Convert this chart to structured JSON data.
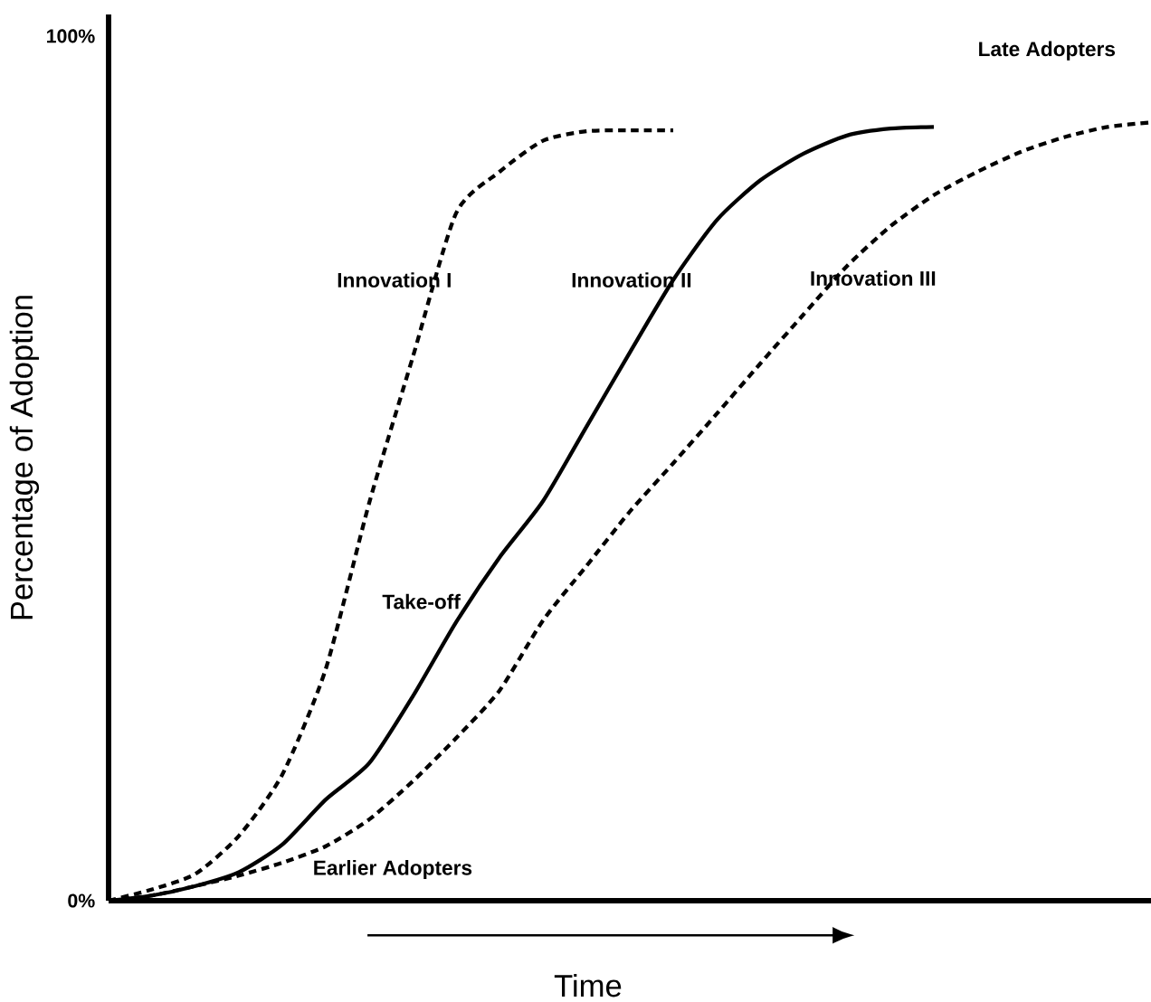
{
  "chart_data": {
    "type": "line",
    "xlabel": "Time",
    "ylabel": "Percentage of Adoption",
    "categories": [
      null,
      null,
      null,
      null,
      null,
      null,
      null,
      null,
      null,
      null,
      null,
      null,
      null,
      null,
      null,
      null,
      null,
      null,
      null,
      null,
      null,
      null,
      null,
      null,
      null
    ],
    "ylim": [
      0,
      102.5
    ],
    "yticks": [
      {
        "value": 0,
        "label": "0%"
      },
      {
        "value": 100,
        "label": "100%"
      }
    ],
    "tick_labels": "y",
    "series": [
      {
        "name": "Innovation I",
        "color": "#000000",
        "line_style": "dashed",
        "values": [
          0,
          1.3,
          3.1,
          7.5,
          14.6,
          26.8,
          46.0,
          62.8,
          79.5,
          84.3,
          87.9,
          89.0,
          89.1,
          89.1,
          null,
          null,
          null,
          null,
          null,
          null,
          null,
          null,
          null,
          null,
          null
        ]
      },
      {
        "name": "Innovation II",
        "color": "#000000",
        "line_style": "solid",
        "values": [
          0,
          0.6,
          1.7,
          3.3,
          6.5,
          11.7,
          15.9,
          23.6,
          32.2,
          39.7,
          46.2,
          54.8,
          63.4,
          71.8,
          78.7,
          83.3,
          86.4,
          88.5,
          89.3,
          89.5,
          null,
          null,
          null,
          null,
          null
        ]
      },
      {
        "name": "Innovation III",
        "color": "#000000",
        "line_style": "dashed",
        "values": [
          0,
          0.6,
          1.7,
          2.9,
          4.4,
          6.3,
          9.4,
          13.8,
          18.8,
          24.3,
          32.4,
          38.7,
          45.0,
          50.6,
          56.3,
          62.1,
          67.8,
          73.4,
          78.0,
          81.6,
          84.3,
          86.6,
          88.3,
          89.5,
          90.0
        ]
      }
    ],
    "annotations": [
      "Take-off",
      "Earlier Adopters",
      "Late Adopters"
    ]
  }
}
